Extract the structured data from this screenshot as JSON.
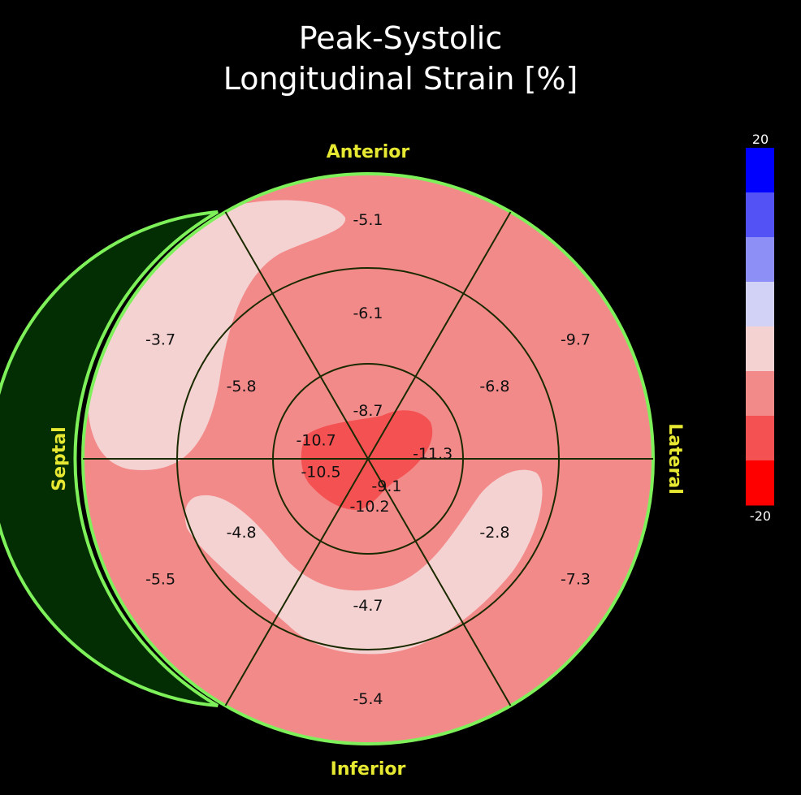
{
  "title": {
    "line1": "Peak-Systolic",
    "line2": "Longitudinal Strain [%]"
  },
  "chart_data": {
    "type": "heatmap",
    "variant": "bullseye-17-segment",
    "title": "Peak-Systolic Longitudinal Strain [%]",
    "orientation": {
      "top": "Anterior",
      "bottom": "Inferior",
      "left": "Septal",
      "right": "Lateral"
    },
    "colorbar": {
      "max_label": "20",
      "min_label": "-20",
      "range": [
        -20,
        20
      ],
      "colors": [
        "#0000ff",
        "#5252f5",
        "#8e8ef7",
        "#d2d2f6",
        "#f5d2d2",
        "#f38a8a",
        "#f45252",
        "#ff0000"
      ]
    },
    "rings": [
      {
        "name": "basal",
        "values": [
          {
            "value": "-5.1"
          },
          {
            "value": "-9.7"
          },
          {
            "value": "-7.3"
          },
          {
            "value": "-5.4"
          },
          {
            "value": "-5.5"
          },
          {
            "value": "-3.7"
          }
        ]
      },
      {
        "name": "mid",
        "values": [
          {
            "value": "-6.1"
          },
          {
            "value": "-6.8"
          },
          {
            "value": "-2.8"
          },
          {
            "value": "-4.7"
          },
          {
            "value": "-4.8"
          },
          {
            "value": "-5.8"
          }
        ]
      },
      {
        "name": "apical",
        "values": [
          {
            "value": "-8.7"
          },
          {
            "value": "-11.3"
          },
          {
            "value": "-9.1"
          },
          {
            "value": "-10.2"
          },
          {
            "value": "-10.5"
          },
          {
            "value": "-10.7"
          }
        ]
      }
    ]
  }
}
